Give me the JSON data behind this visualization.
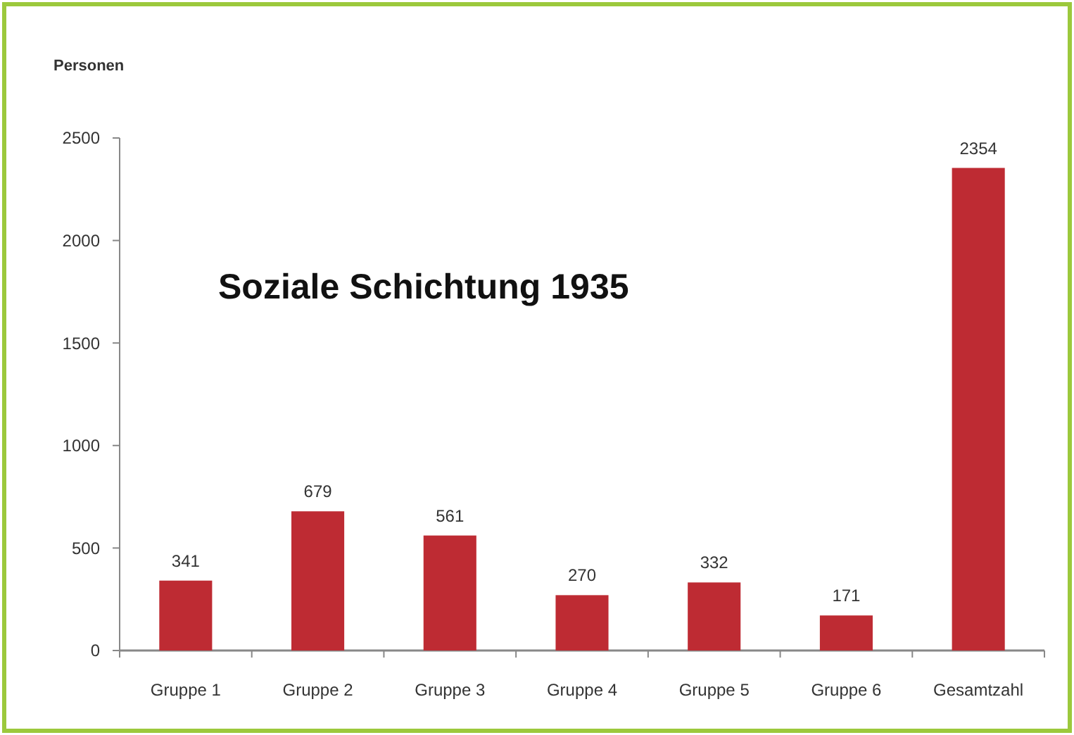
{
  "chart_data": {
    "type": "bar",
    "title": "Soziale Schichtung 1935",
    "ylabel": "Personen",
    "categories": [
      "Gruppe 1",
      "Gruppe 2",
      "Gruppe 3",
      "Gruppe 4",
      "Gruppe 5",
      "Gruppe 6",
      "Gesamtzahl"
    ],
    "values": [
      341,
      679,
      561,
      270,
      332,
      171,
      2354
    ],
    "color": "#be2b33",
    "ylim": [
      0,
      2500
    ],
    "yticks": [
      0,
      500,
      1000,
      1500,
      2000,
      2500
    ],
    "data_labels": true,
    "grid": false
  }
}
